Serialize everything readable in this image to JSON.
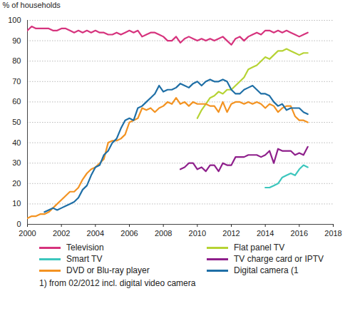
{
  "chart_data": {
    "type": "line",
    "y_label": "% of households",
    "footnote": "1) from 02/2012 incl. digital video camera",
    "xlim": [
      2000,
      2018
    ],
    "xticks": [
      2000,
      2002,
      2004,
      2006,
      2008,
      2010,
      2012,
      2014,
      2016,
      2018
    ],
    "ylim": [
      0,
      100
    ],
    "yticks": [
      0,
      10,
      20,
      30,
      40,
      50,
      60,
      70,
      80,
      90,
      100
    ],
    "grid": true,
    "legend": "bottom",
    "x": [
      2000,
      2000.25,
      2000.5,
      2000.75,
      2001,
      2001.25,
      2001.5,
      2001.75,
      2002,
      2002.25,
      2002.5,
      2002.75,
      2003,
      2003.25,
      2003.5,
      2003.75,
      2004,
      2004.25,
      2004.5,
      2004.75,
      2005,
      2005.25,
      2005.5,
      2005.75,
      2006,
      2006.25,
      2006.5,
      2006.75,
      2007,
      2007.25,
      2007.5,
      2007.75,
      2008,
      2008.25,
      2008.5,
      2008.75,
      2009,
      2009.25,
      2009.5,
      2009.75,
      2010,
      2010.25,
      2010.5,
      2010.75,
      2011,
      2011.25,
      2011.5,
      2011.75,
      2012,
      2012.25,
      2012.5,
      2012.75,
      2013,
      2013.25,
      2013.5,
      2013.75,
      2014,
      2014.25,
      2014.5,
      2014.75,
      2015,
      2015.25,
      2015.5,
      2015.75,
      2016,
      2016.25,
      2016.5
    ],
    "series": [
      {
        "name": "Television",
        "color": "#d6337d",
        "values": [
          95,
          97,
          96,
          96,
          96,
          96,
          95,
          95,
          96,
          96,
          95,
          94,
          95,
          94,
          95,
          94,
          95,
          94,
          94,
          93,
          93,
          94,
          93,
          94,
          95,
          94,
          95,
          92,
          93,
          94,
          94,
          93,
          92,
          90,
          90,
          92,
          89,
          91,
          92,
          91,
          90,
          91,
          90,
          91,
          90,
          91,
          92,
          90,
          88,
          91,
          92,
          90,
          92,
          93,
          94,
          93,
          95,
          95,
          94,
          95,
          94,
          95,
          94,
          93,
          92,
          93,
          94
        ]
      },
      {
        "name": "Flat panel TV",
        "color": "#b6d334",
        "values": [
          null,
          null,
          null,
          null,
          null,
          null,
          null,
          null,
          null,
          null,
          null,
          null,
          null,
          null,
          null,
          null,
          null,
          null,
          null,
          null,
          null,
          null,
          null,
          null,
          null,
          null,
          null,
          null,
          null,
          null,
          null,
          null,
          null,
          null,
          null,
          null,
          null,
          null,
          null,
          null,
          52,
          56,
          59,
          62,
          63,
          65,
          64,
          66,
          66,
          68,
          70,
          72,
          76,
          77,
          78,
          80,
          82,
          81,
          83,
          85,
          85,
          86,
          85,
          84,
          83,
          84,
          84
        ]
      },
      {
        "name": "Smart TV",
        "color": "#3cc6bd",
        "values": [
          null,
          null,
          null,
          null,
          null,
          null,
          null,
          null,
          null,
          null,
          null,
          null,
          null,
          null,
          null,
          null,
          null,
          null,
          null,
          null,
          null,
          null,
          null,
          null,
          null,
          null,
          null,
          null,
          null,
          null,
          null,
          null,
          null,
          null,
          null,
          null,
          null,
          null,
          null,
          null,
          null,
          null,
          null,
          null,
          null,
          null,
          null,
          null,
          null,
          null,
          null,
          null,
          null,
          null,
          null,
          null,
          18,
          18,
          19,
          20,
          23,
          24,
          25,
          24,
          27,
          29,
          28
        ]
      },
      {
        "name": "TV charge card or IPTV",
        "color": "#8e1f8b",
        "values": [
          null,
          null,
          null,
          null,
          null,
          null,
          null,
          null,
          null,
          null,
          null,
          null,
          null,
          null,
          null,
          null,
          null,
          null,
          null,
          null,
          null,
          null,
          null,
          null,
          null,
          null,
          null,
          null,
          null,
          null,
          null,
          null,
          null,
          null,
          null,
          null,
          27,
          28,
          30,
          30,
          27,
          28,
          26,
          29,
          29,
          26,
          30,
          29,
          29,
          33,
          33,
          33,
          34,
          34,
          34,
          33,
          34,
          36,
          30,
          37,
          36,
          36,
          36,
          34,
          35,
          34,
          38
        ]
      },
      {
        "name": "DVD or Blu-ray player",
        "color": "#f39322",
        "values": [
          3,
          4,
          4,
          5,
          5,
          6,
          8,
          10,
          12,
          14,
          16,
          16,
          18,
          22,
          25,
          27,
          28,
          30,
          32,
          40,
          41,
          41,
          42,
          44,
          50,
          51,
          52,
          57,
          56,
          57,
          55,
          57,
          58,
          60,
          59,
          62,
          59,
          60,
          58,
          60,
          59,
          59,
          59,
          58,
          58,
          55,
          60,
          55,
          59,
          60,
          60,
          59,
          60,
          59,
          60,
          59,
          57,
          59,
          58,
          55,
          57,
          58,
          58,
          53,
          51,
          51,
          50
        ]
      },
      {
        "name": "Digital camera (1",
        "color": "#1f6fa6",
        "values": [
          null,
          null,
          null,
          null,
          6,
          7,
          8,
          7,
          8,
          9,
          10,
          11,
          13,
          17,
          19,
          24,
          28,
          29,
          34,
          36,
          40,
          42,
          47,
          51,
          52,
          51,
          57,
          58,
          60,
          62,
          64,
          68,
          65,
          66,
          66,
          67,
          69,
          68,
          67,
          69,
          70,
          68,
          70,
          71,
          70,
          70,
          71,
          70,
          66,
          64,
          64,
          66,
          67,
          68,
          66,
          64,
          64,
          63,
          60,
          58,
          59,
          56,
          57,
          57,
          57,
          55,
          54
        ]
      }
    ]
  }
}
